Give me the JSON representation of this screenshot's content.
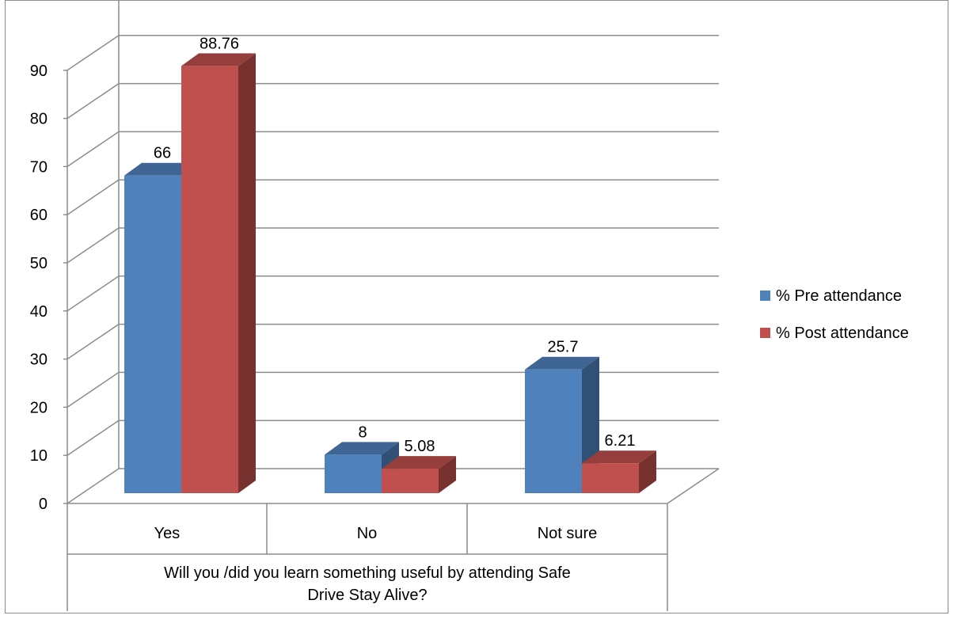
{
  "chart_data": {
    "type": "bar",
    "title": "",
    "xlabel": "Will you /did you learn something useful by attending Safe Drive Stay Alive?",
    "xlabel_lines": [
      "Will you /did you learn something useful by attending Safe",
      "Drive Stay Alive?"
    ],
    "ylabel": "",
    "ylim": [
      0,
      90
    ],
    "yticks": [
      "0",
      "10",
      "20",
      "30",
      "40",
      "50",
      "60",
      "70",
      "80",
      "90"
    ],
    "categories": [
      "Yes",
      "No",
      "Not sure"
    ],
    "series": [
      {
        "name": "% Pre attendance",
        "values": [
          66,
          8,
          25.7
        ],
        "labels": [
          "66",
          "8",
          "25.7"
        ],
        "color": "#4f81bd"
      },
      {
        "name": "% Post attendance",
        "values": [
          88.76,
          5.08,
          6.21
        ],
        "labels": [
          "88.76",
          "5.08",
          "6.21"
        ],
        "color": "#c0504d"
      }
    ],
    "grid": true,
    "legend_position": "right",
    "style": "3d-clustered-column"
  }
}
